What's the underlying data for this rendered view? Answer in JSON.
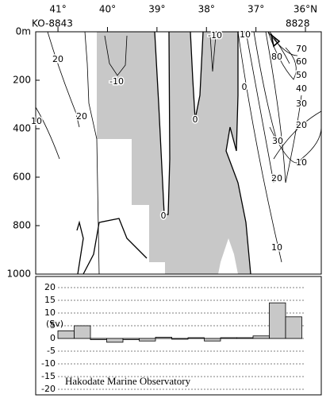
{
  "chart_data": [
    {
      "type": "contour",
      "station_left": "KO-8843",
      "station_right": "8828",
      "xlim": [
        41.45,
        35.68
      ],
      "xticks": [
        {
          "value": 41,
          "label": "41°"
        },
        {
          "value": 40,
          "label": "40°"
        },
        {
          "value": 39,
          "label": "39°"
        },
        {
          "value": 38,
          "label": "38°"
        },
        {
          "value": 37,
          "label": "37°"
        },
        {
          "value": 36,
          "label": "36°N"
        }
      ],
      "ylim": [
        0,
        1000
      ],
      "yticks": [
        {
          "value": 0,
          "label": "0m"
        },
        200,
        400,
        600,
        800,
        1000
      ],
      "contour_labels": [
        20,
        10,
        20,
        -10,
        0,
        0,
        0,
        -10,
        10,
        80,
        70,
        60,
        50,
        40,
        30,
        20,
        30,
        10,
        20,
        10
      ],
      "negative_color": "#c8c8c8"
    },
    {
      "type": "bar",
      "ylabel": "(Sv)",
      "values": [
        3,
        5,
        -0.5,
        -1.5,
        -0.5,
        -1,
        0.5,
        -0.3,
        0.3,
        -1,
        0.3,
        0.3,
        1,
        14,
        8.5
      ],
      "color": "#c8c8c8",
      "ylim": [
        -21,
        22
      ],
      "yticks": [
        -20,
        -15,
        -10,
        -5,
        0,
        5,
        10,
        15,
        20
      ],
      "grid": true,
      "note": "Hakodate Marine Observatory"
    }
  ]
}
